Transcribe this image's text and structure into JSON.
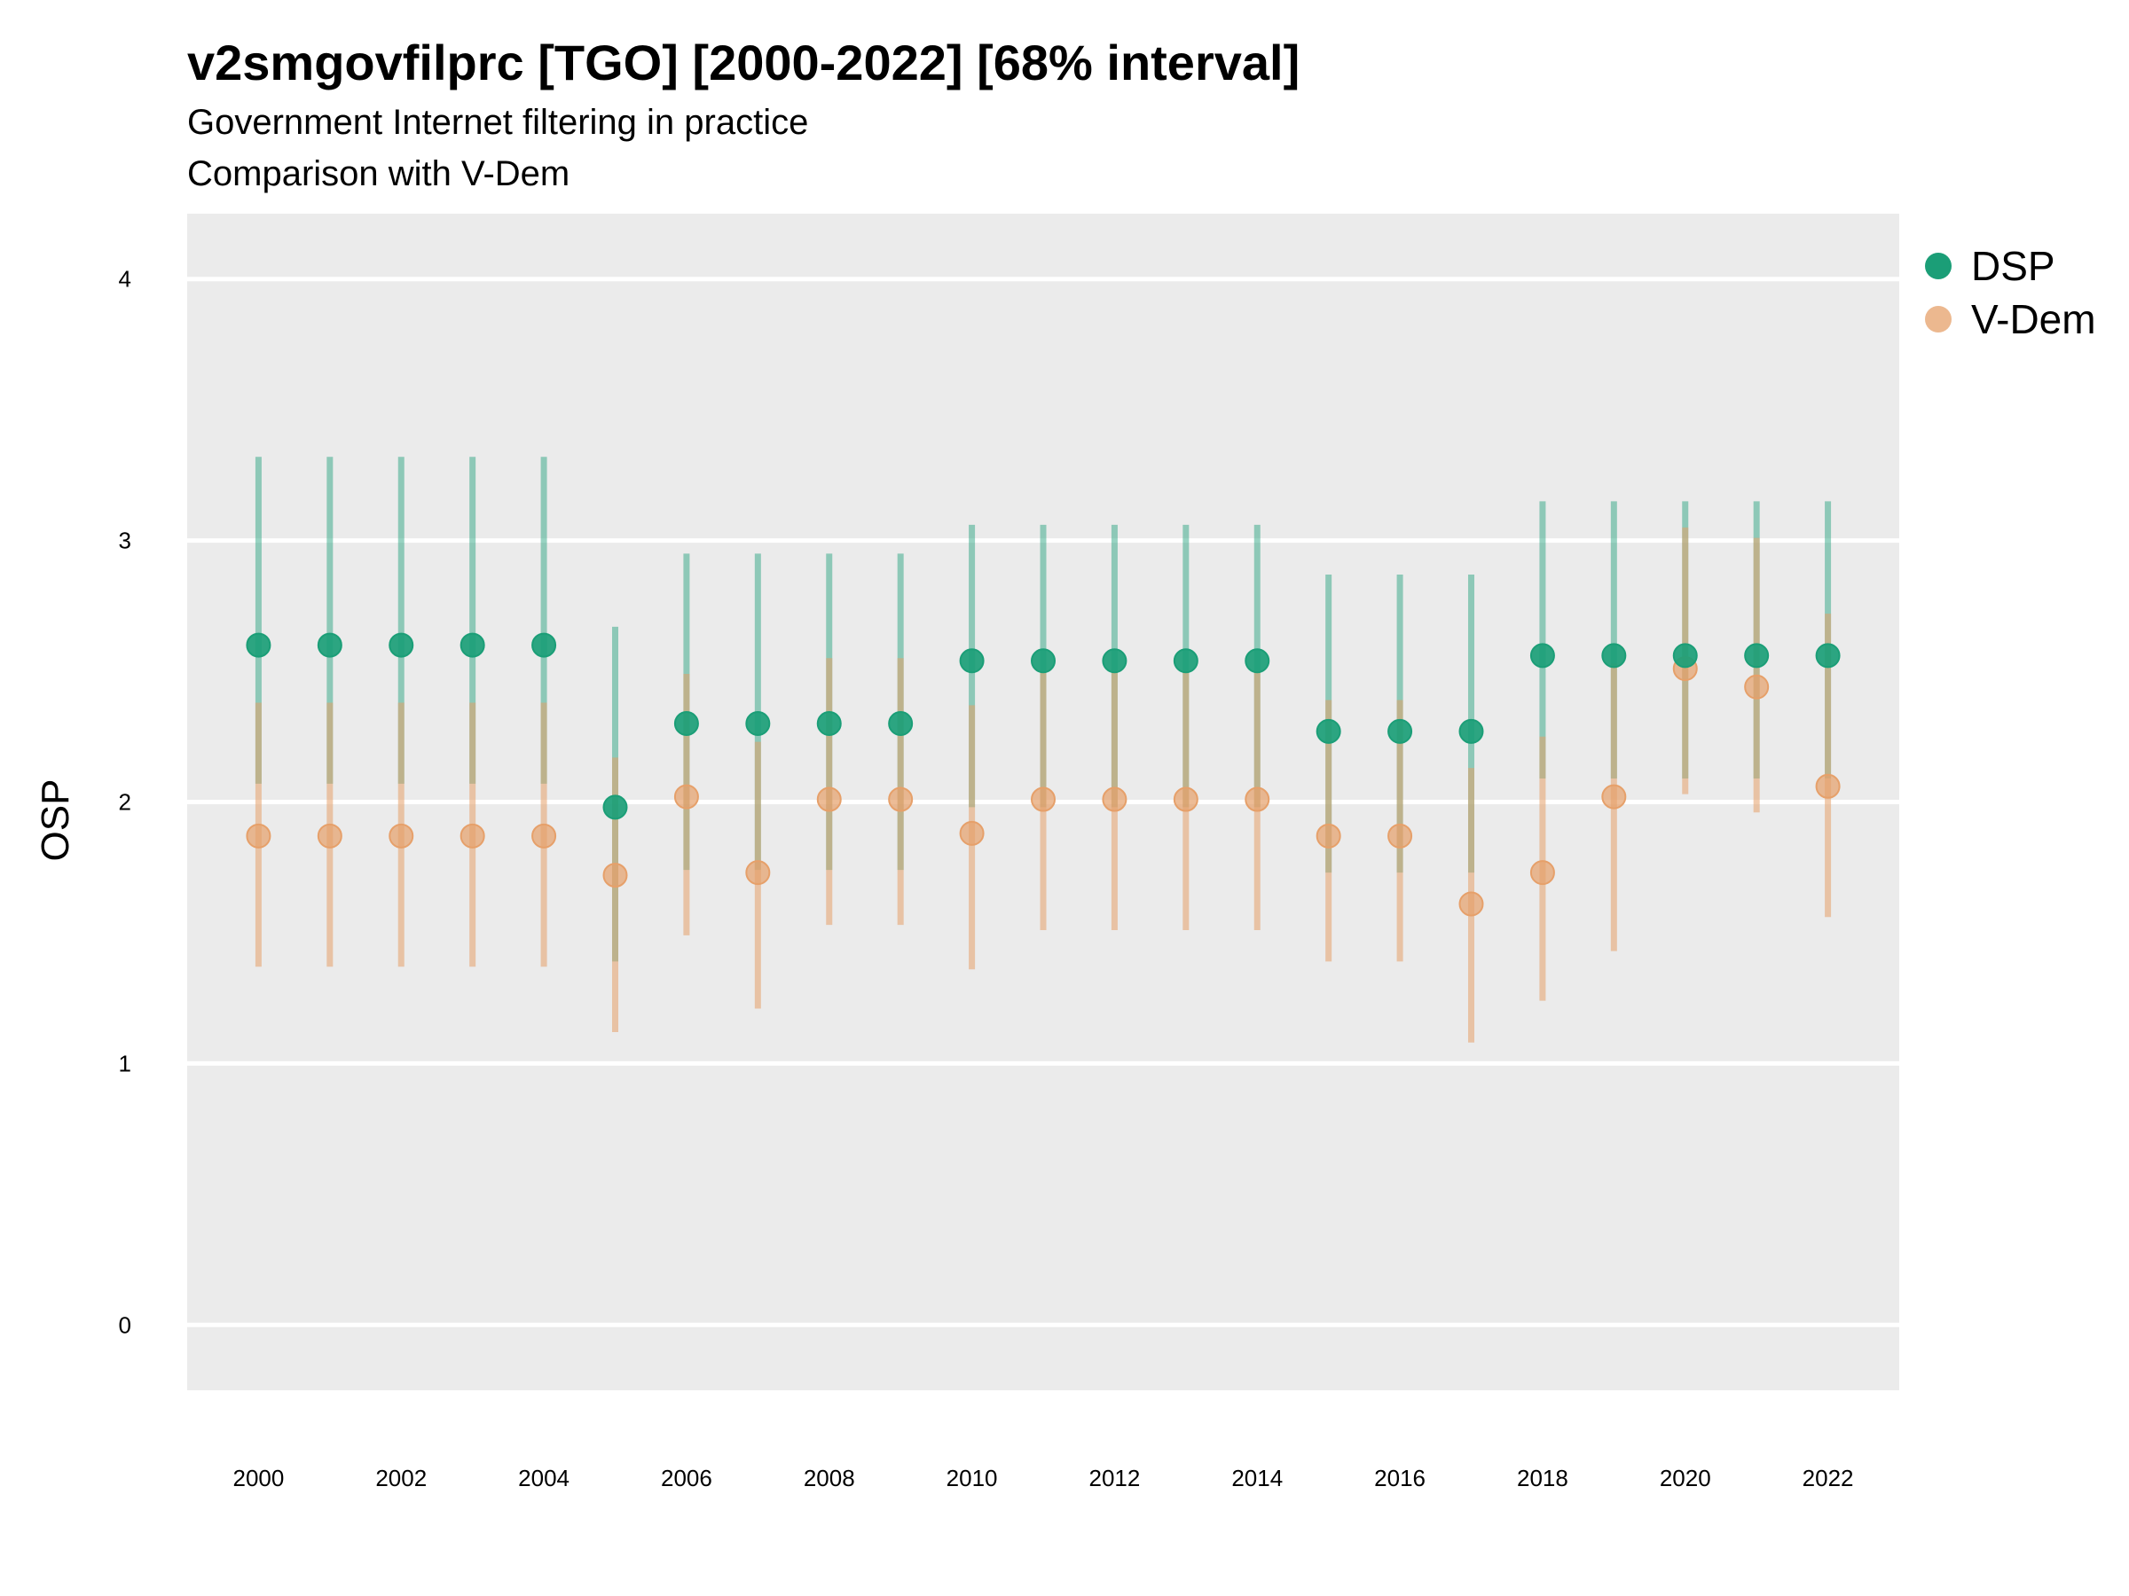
{
  "chart_data": {
    "type": "scatter",
    "title": "v2smgovfilprc [TGO] [2000-2022] [68% interval]",
    "subtitle_lines": [
      "Government Internet filtering in practice",
      "Comparison with V-Dem"
    ],
    "xlabel": "",
    "ylabel": "OSP",
    "x": [
      2000,
      2001,
      2002,
      2003,
      2004,
      2005,
      2006,
      2007,
      2008,
      2009,
      2010,
      2011,
      2012,
      2013,
      2014,
      2015,
      2016,
      2017,
      2018,
      2019,
      2020,
      2021,
      2022
    ],
    "x_ticks": [
      "2000",
      "2002",
      "2004",
      "2006",
      "2008",
      "2010",
      "2012",
      "2014",
      "2016",
      "2018",
      "2020",
      "2022"
    ],
    "y_ticks": [
      "0",
      "1",
      "2",
      "3",
      "4"
    ],
    "xlim": [
      1999.0,
      2023.0
    ],
    "ylim": [
      -0.25,
      4.25
    ],
    "grid": true,
    "legend_position": "right",
    "series": [
      {
        "name": "DSP",
        "color": "#1b9e77",
        "values": [
          2.6,
          2.6,
          2.6,
          2.6,
          2.6,
          1.98,
          2.3,
          2.3,
          2.3,
          2.3,
          2.54,
          2.54,
          2.54,
          2.54,
          2.54,
          2.27,
          2.27,
          2.27,
          2.56,
          2.56,
          2.56,
          2.56,
          2.56
        ],
        "lower": [
          2.07,
          2.07,
          2.07,
          2.07,
          2.07,
          1.39,
          1.74,
          1.74,
          1.74,
          1.74,
          1.98,
          1.98,
          1.98,
          1.98,
          1.98,
          1.73,
          1.73,
          1.73,
          2.09,
          2.09,
          2.09,
          2.09,
          2.09
        ],
        "upper": [
          3.32,
          3.32,
          3.32,
          3.32,
          3.32,
          2.67,
          2.95,
          2.95,
          2.95,
          2.95,
          3.06,
          3.06,
          3.06,
          3.06,
          3.06,
          2.87,
          2.87,
          2.87,
          3.15,
          3.15,
          3.15,
          3.15,
          3.15
        ]
      },
      {
        "name": "V-Dem",
        "color": "#e6a06a",
        "values": [
          1.87,
          1.87,
          1.87,
          1.87,
          1.87,
          1.72,
          2.02,
          1.73,
          2.01,
          2.01,
          1.88,
          2.01,
          2.01,
          2.01,
          2.01,
          1.87,
          1.87,
          1.61,
          1.73,
          2.02,
          2.51,
          2.44,
          2.06
        ],
        "lower": [
          1.37,
          1.37,
          1.37,
          1.37,
          1.37,
          1.12,
          1.49,
          1.21,
          1.53,
          1.53,
          1.36,
          1.51,
          1.51,
          1.51,
          1.51,
          1.39,
          1.39,
          1.08,
          1.24,
          1.43,
          2.03,
          1.96,
          1.56
        ],
        "upper": [
          2.38,
          2.38,
          2.38,
          2.38,
          2.38,
          2.17,
          2.49,
          2.23,
          2.55,
          2.55,
          2.37,
          2.5,
          2.5,
          2.5,
          2.5,
          2.39,
          2.39,
          2.13,
          2.25,
          2.53,
          3.05,
          3.01,
          2.72
        ]
      }
    ]
  }
}
